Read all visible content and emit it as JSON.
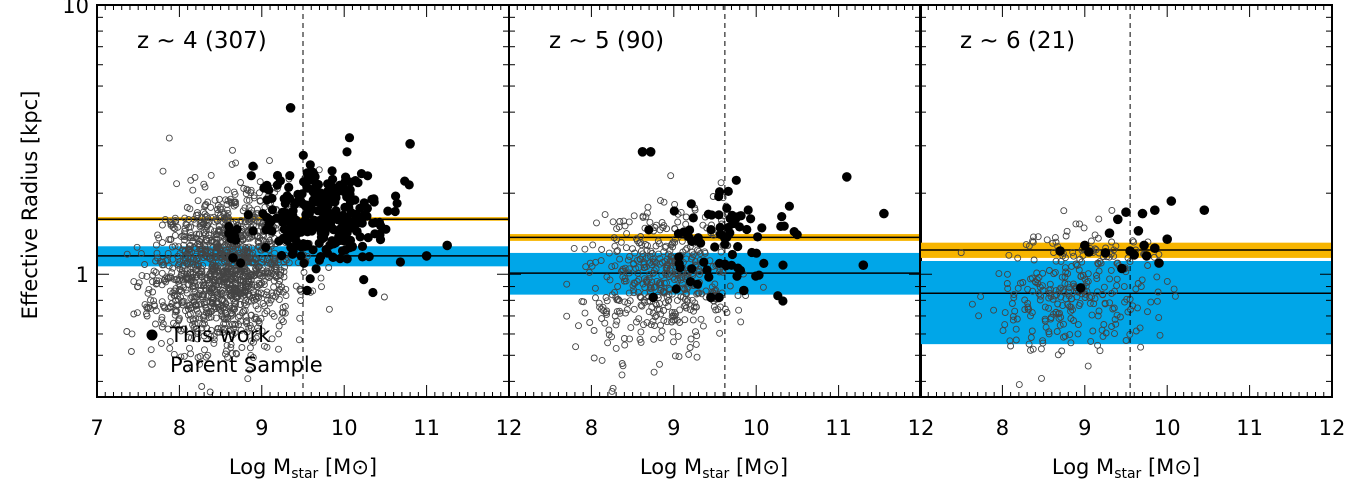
{
  "figure": {
    "ylabel": "Effective Radius [kpc]",
    "xlabel_prefix": "Log M",
    "xlabel_sub": "star",
    "xlabel_suffix_open": " [M",
    "xlabel_suffix_close": "]",
    "sun_symbol": "⊙",
    "legend": {
      "this_work": "This work",
      "parent": "Parent Sample"
    }
  },
  "colors": {
    "band_blue": "#00a6e8",
    "band_orange": "#f7b500",
    "filled": "#000000",
    "open": "#444444",
    "line": "#000000"
  },
  "chart_data": [
    {
      "type": "scatter",
      "title": "z ~ 4 (307)",
      "xlabel": "Log Mstar [M⊙]",
      "ylabel": "Effective Radius [kpc]",
      "xlim": [
        7,
        12
      ],
      "ylim": [
        0.35,
        10
      ],
      "yscale": "log",
      "xticks": [
        7,
        8,
        9,
        10,
        11,
        12
      ],
      "yticks": [
        1,
        10
      ],
      "vline": 9.5,
      "blue_median": 1.17,
      "blue_band": [
        1.07,
        1.27
      ],
      "orange_median": 1.6,
      "orange_band": [
        1.58,
        1.63
      ],
      "parent_cloud": {
        "n": 1300,
        "x_center": 8.55,
        "x_sd": 0.42,
        "y_center": 1.05,
        "y_sd_log": 0.14,
        "x_range": [
          7.3,
          11.4
        ],
        "seed": 11
      },
      "this_work_cloud": {
        "n": 300,
        "x_center": 9.75,
        "x_sd": 0.42,
        "y_center": 1.62,
        "y_sd_log": 0.09,
        "x_range": [
          8.6,
          11.3
        ],
        "seed": 21
      },
      "notable_points": [
        {
          "x": 9.35,
          "y": 4.15
        },
        {
          "x": 10.8,
          "y": 3.05
        },
        {
          "x": 11.25,
          "y": 1.28
        },
        {
          "x": 9.55,
          "y": 0.87
        },
        {
          "x": 8.65,
          "y": 1.15
        },
        {
          "x": 11.0,
          "y": 1.17
        }
      ]
    },
    {
      "type": "scatter",
      "title": "z ~ 5 (90)",
      "xlabel": "Log Mstar [M⊙]",
      "ylabel": "",
      "xlim": [
        7,
        12
      ],
      "ylim": [
        0.35,
        10
      ],
      "yscale": "log",
      "xticks": [
        7,
        8,
        9,
        10,
        11,
        12
      ],
      "yticks": [
        1,
        10
      ],
      "vline": 9.62,
      "blue_median": 1.01,
      "blue_band": [
        0.84,
        1.2
      ],
      "orange_median": 1.37,
      "orange_band": [
        1.33,
        1.41
      ],
      "parent_cloud": {
        "n": 480,
        "x_center": 8.85,
        "x_sd": 0.45,
        "y_center": 0.95,
        "y_sd_log": 0.13,
        "x_range": [
          7.7,
          11.6
        ],
        "seed": 31
      },
      "this_work_cloud": {
        "n": 75,
        "x_center": 9.75,
        "x_sd": 0.45,
        "y_center": 1.35,
        "y_sd_log": 0.09,
        "x_range": [
          8.6,
          11.6
        ],
        "seed": 41
      },
      "notable_points": [
        {
          "x": 8.62,
          "y": 2.85
        },
        {
          "x": 8.72,
          "y": 2.85
        },
        {
          "x": 11.1,
          "y": 2.3
        },
        {
          "x": 8.75,
          "y": 0.82
        },
        {
          "x": 9.45,
          "y": 0.82
        },
        {
          "x": 9.55,
          "y": 0.82
        },
        {
          "x": 9.85,
          "y": 0.87
        },
        {
          "x": 11.55,
          "y": 1.68
        },
        {
          "x": 11.3,
          "y": 1.08
        }
      ]
    },
    {
      "type": "scatter",
      "title": "z ~ 6 (21)",
      "xlabel": "Log Mstar [M⊙]",
      "ylabel": "",
      "xlim": [
        7,
        12
      ],
      "ylim": [
        0.35,
        10
      ],
      "yscale": "log",
      "xticks": [
        7,
        8,
        9,
        10,
        11,
        12
      ],
      "yticks": [
        1,
        10
      ],
      "vline": 9.55,
      "blue_median": 0.85,
      "blue_band": [
        0.55,
        1.12
      ],
      "orange_median": 1.23,
      "orange_band": [
        1.15,
        1.31
      ],
      "parent_cloud": {
        "n": 300,
        "x_center": 8.9,
        "x_sd": 0.5,
        "y_center": 0.85,
        "y_sd_log": 0.12,
        "x_range": [
          7.5,
          10.1
        ],
        "seed": 51
      },
      "this_work_cloud": {
        "n": 0,
        "x_center": 9.5,
        "x_sd": 0.3,
        "y_center": 1.3,
        "y_sd_log": 0.1,
        "x_range": [
          8.5,
          10.5
        ],
        "seed": 61
      },
      "notable_points": [
        {
          "x": 10.45,
          "y": 1.73
        },
        {
          "x": 10.05,
          "y": 1.87
        },
        {
          "x": 9.85,
          "y": 1.73
        },
        {
          "x": 9.7,
          "y": 1.68
        },
        {
          "x": 9.5,
          "y": 1.7
        },
        {
          "x": 9.3,
          "y": 1.42
        },
        {
          "x": 9.0,
          "y": 1.28
        },
        {
          "x": 8.7,
          "y": 1.22
        },
        {
          "x": 9.4,
          "y": 1.6
        },
        {
          "x": 9.55,
          "y": 1.22
        },
        {
          "x": 9.72,
          "y": 1.28
        },
        {
          "x": 9.85,
          "y": 1.25
        },
        {
          "x": 9.6,
          "y": 1.18
        },
        {
          "x": 9.75,
          "y": 1.17
        },
        {
          "x": 9.9,
          "y": 1.1
        },
        {
          "x": 10.0,
          "y": 1.35
        },
        {
          "x": 9.45,
          "y": 1.05
        },
        {
          "x": 9.05,
          "y": 1.21
        },
        {
          "x": 8.95,
          "y": 0.89
        },
        {
          "x": 9.25,
          "y": 1.2
        },
        {
          "x": 9.65,
          "y": 1.45
        }
      ]
    }
  ]
}
